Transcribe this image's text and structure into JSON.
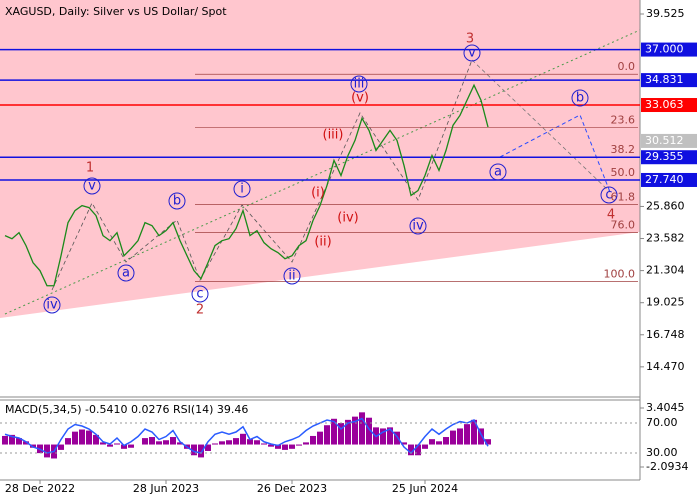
{
  "chart_data": {
    "type": "line",
    "title": "XAGUSD, Daily:  Silver vs US Dollar/ Spot",
    "categories": [
      null,
      null,
      null,
      null,
      null,
      "28 Dec 2022",
      null,
      null,
      null,
      null,
      null,
      null,
      null,
      null,
      null,
      null,
      null,
      null,
      null,
      null,
      null,
      null,
      null,
      "28 Jun 2023",
      null,
      null,
      null,
      null,
      null,
      null,
      null,
      null,
      null,
      null,
      null,
      null,
      null,
      null,
      null,
      null,
      null,
      "26 Dec 2023",
      null,
      null,
      null,
      null,
      null,
      null,
      null,
      null,
      null,
      null,
      null,
      null,
      null,
      null,
      null,
      null,
      null,
      null,
      "25 Jun 2024",
      null,
      null,
      null,
      null,
      null,
      null,
      null,
      null,
      null
    ],
    "series": [
      {
        "color": "#1a8a1a",
        "values": [
          23.79,
          23.57,
          24.0,
          23.08,
          21.87,
          21.3,
          20.23,
          20.23,
          22.36,
          24.71,
          25.57,
          25.92,
          25.78,
          25.21,
          23.79,
          23.43,
          24.0,
          22.36,
          22.86,
          23.43,
          24.71,
          24.5,
          23.79,
          24.14,
          24.71,
          23.43,
          22.36,
          21.3,
          20.73,
          21.87,
          23.08,
          23.43,
          23.57,
          24.29,
          25.57,
          23.79,
          24.14,
          23.29,
          22.86,
          22.58,
          22.15,
          22.36,
          23.08,
          23.43,
          24.86,
          25.92,
          27.35,
          29.13,
          28.06,
          29.48,
          30.55,
          32.12,
          31.26,
          29.84,
          30.55,
          31.26,
          30.55,
          28.77,
          26.64,
          26.99,
          28.06,
          29.48,
          28.42,
          29.84,
          31.62,
          32.33,
          33.4,
          34.47,
          33.4,
          31.5
        ]
      }
    ],
    "ylim": [
      12.4,
      40.52
    ],
    "yticks": [
      39.525,
      {
        "value": 25.86,
        "label": "25.860"
      },
      23.582,
      21.304,
      19.025,
      16.748,
      {
        "value": 14.47,
        "label": "14.470"
      }
    ],
    "levels": [
      {
        "value": 37,
        "label": "37.000",
        "color": "#1010e0"
      },
      {
        "value": 34.831,
        "label": "34.831",
        "color": "#1010e0"
      },
      {
        "value": 33.063,
        "label": "33.063",
        "color": "#ff0000"
      },
      {
        "value": 30.512,
        "label": "30.512",
        "color": "#c0c0c0"
      },
      {
        "value": 29.355,
        "label": "29.355",
        "color": "#1010e0"
      },
      {
        "value": 27.74,
        "label": "27.740",
        "color": "#1010e0"
      }
    ],
    "fibonacci": [
      {
        "label": "0.0",
        "value": 35.25
      },
      {
        "label": "23.6",
        "value": 31.48
      },
      {
        "label": "38.2",
        "value": 29.355
      },
      {
        "label": "50.0",
        "value": 27.74
      },
      {
        "label": "61.8",
        "value": 26.0
      },
      {
        "label": "76.0",
        "value": 24.0
      },
      {
        "label": "100.0",
        "value": 20.52
      }
    ],
    "wave_labels": [
      "1",
      "v",
      "a",
      "iv",
      "b",
      "c",
      "2",
      "i",
      "ii",
      "(i)",
      "(ii)",
      "(iii)",
      "(iv)",
      "(v)",
      "iii",
      "3",
      "v",
      "iv",
      "a",
      "b",
      "c",
      "4"
    ],
    "indicator": {
      "title": "MACD(5,34,5) -0.5410 0.0276 RSI(14) 39.46",
      "macd_color": "#9a009a",
      "rsi_color": "#2a5cff",
      "macd_lim": [
        -3.305,
        4.15
      ],
      "macd_ticks": [
        3.4045,
        -2.0934
      ],
      "rsi_lim": [
        -6,
        100.7
      ],
      "rsi_ticks": [
        {
          "value": 70,
          "label": "70.00"
        },
        {
          "value": 30,
          "label": "30.00"
        }
      ],
      "macd": [
        0.8,
        0.9,
        0.6,
        0.3,
        -0.3,
        -0.8,
        -1.2,
        -1.3,
        -0.5,
        0.6,
        1.2,
        1.4,
        1.3,
        0.9,
        0.2,
        -0.2,
        0.1,
        -0.4,
        -0.3,
        0.0,
        0.6,
        0.7,
        0.3,
        0.4,
        0.7,
        0.2,
        -0.4,
        -1.0,
        -1.2,
        -0.6,
        0.1,
        0.3,
        0.4,
        0.6,
        1.0,
        0.5,
        0.4,
        0.1,
        -0.2,
        -0.4,
        -0.5,
        -0.4,
        -0.1,
        0.2,
        0.8,
        1.2,
        1.8,
        2.4,
        2.0,
        2.3,
        2.6,
        3.0,
        2.5,
        1.6,
        1.5,
        1.6,
        1.2,
        0.2,
        -1.0,
        -1.0,
        -0.4,
        0.5,
        0.3,
        0.7,
        1.3,
        1.5,
        1.9,
        2.3,
        1.5,
        0.5
      ],
      "rsi": [
        55,
        52,
        50,
        45,
        38,
        35,
        30,
        32,
        48,
        62,
        68,
        66,
        62,
        55,
        45,
        42,
        50,
        40,
        45,
        52,
        62,
        58,
        48,
        52,
        60,
        45,
        38,
        32,
        30,
        45,
        55,
        58,
        55,
        58,
        65,
        48,
        52,
        45,
        42,
        40,
        45,
        48,
        52,
        60,
        66,
        70,
        74,
        72,
        62,
        70,
        72,
        76,
        62,
        52,
        58,
        62,
        52,
        38,
        30,
        40,
        52,
        62,
        55,
        62,
        68,
        72,
        70,
        74,
        55,
        39
      ]
    }
  }
}
